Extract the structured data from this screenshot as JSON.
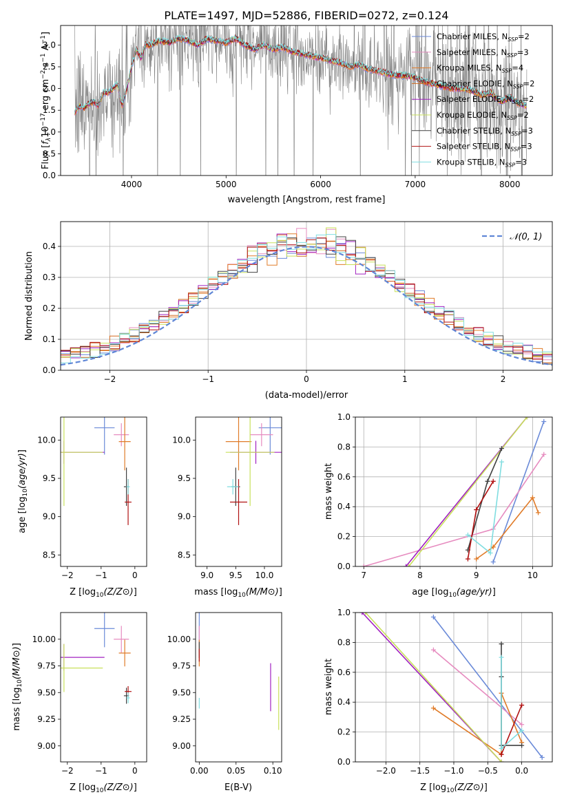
{
  "chart_data": [
    {
      "id": "spectrum",
      "type": "line",
      "title": "PLATE=1497, MJD=52886, FIBERID=0272, z=0.124",
      "xlabel": "wavelength [Angstrom, rest frame]",
      "ylabel_parts": [
        "Flux [",
        "f",
        "λ",
        "10",
        "−17",
        " erg cm",
        "−2",
        " s",
        "−1",
        " A",
        "−1",
        "]"
      ],
      "xlim": [
        3250,
        8450
      ],
      "ylim": [
        0,
        3.45
      ],
      "xticks": [
        4000,
        5000,
        6000,
        7000,
        8000
      ],
      "yticks": [
        0.0,
        0.5,
        1.0,
        1.5,
        2.0,
        2.5,
        3.0
      ],
      "data_color": "#808080",
      "model_x": [
        3400,
        3450,
        3500,
        3550,
        3600,
        3650,
        3700,
        3750,
        3800,
        3850,
        3900,
        3950,
        4000,
        4050,
        4100,
        4150,
        4200,
        4300,
        4400,
        4500,
        4600,
        4700,
        4800,
        4900,
        5000,
        5100,
        5200,
        5300,
        5400,
        5500,
        5600,
        5700,
        5800,
        5900,
        6000,
        6100,
        6200,
        6300,
        6400,
        6500,
        6600,
        6700,
        6800,
        6900,
        7000,
        7100,
        7200,
        7300,
        7400,
        7500,
        7600,
        7700,
        7800,
        7900,
        8000,
        8100,
        8180
      ],
      "model_y": [
        1.45,
        1.6,
        1.55,
        1.65,
        1.7,
        1.6,
        1.9,
        1.9,
        2.0,
        2.1,
        1.6,
        2.0,
        2.5,
        2.9,
        2.7,
        3.0,
        3.0,
        3.1,
        3.05,
        3.15,
        3.1,
        3.0,
        3.15,
        3.1,
        3.05,
        3.15,
        3.0,
        2.9,
        3.0,
        2.9,
        2.95,
        2.85,
        2.8,
        2.75,
        2.7,
        2.65,
        2.6,
        2.5,
        2.55,
        2.45,
        2.4,
        2.35,
        2.3,
        2.3,
        2.25,
        2.15,
        2.1,
        2.05,
        2.0,
        2.0,
        1.95,
        1.85,
        1.9,
        1.7,
        1.8,
        1.65,
        1.6
      ],
      "series": [
        {
          "name": "Chabrier MILES, N",
          "sub": "SSP",
          "n": "2",
          "color": "#6a8ad8"
        },
        {
          "name": "Salpeter MILES, N",
          "sub": "SSP",
          "n": "3",
          "color": "#e68bbf"
        },
        {
          "name": "Kroupa MILES, N",
          "sub": "SSP",
          "n": "4",
          "color": "#e07b28"
        },
        {
          "name": "Chabrier ELODIE, N",
          "sub": "SSP",
          "n": "2",
          "color": "#d2691e"
        },
        {
          "name": "Salpeter ELODIE, N",
          "sub": "SSP",
          "n": "2",
          "color": "#a020c0"
        },
        {
          "name": "Kroupa ELODIE, N",
          "sub": "SSP",
          "n": "2",
          "color": "#c8e05a"
        },
        {
          "name": "Chabrier STELIB, N",
          "sub": "SSP",
          "n": "3",
          "color": "#404040"
        },
        {
          "name": "Salpeter STELIB, N",
          "sub": "SSP",
          "n": "3",
          "color": "#b01010"
        },
        {
          "name": "Kroupa STELIB, N",
          "sub": "SSP",
          "n": "3",
          "color": "#7fdde0"
        }
      ]
    },
    {
      "id": "residuals",
      "type": "histogram",
      "xlabel": "(data-model)/error",
      "ylabel": "Normed distribution",
      "xlim": [
        -2.5,
        2.5
      ],
      "ylim": [
        0,
        0.48
      ],
      "xticks": [
        -2,
        -1,
        0,
        1,
        2
      ],
      "yticks": [
        0.0,
        0.1,
        0.2,
        0.3,
        0.4
      ],
      "grid": true,
      "legend_label": "𝒩(0, 1)",
      "legend_color": "#5f86d6",
      "bin_width": 0.1,
      "bin_start": -2.5,
      "reference_curve": {
        "mean": 0,
        "sigma": 1
      }
    },
    {
      "id": "age-vs-Z",
      "type": "errorbar",
      "xlabel": "Z [log10(Z/Z⊙)]",
      "ylabel": "age  [log10(age/yr)]",
      "xlim": [
        -2.2,
        0.35
      ],
      "ylim": [
        8.35,
        10.3
      ],
      "xticks": [
        -2,
        -1,
        0
      ],
      "yticks": [
        8.5,
        9.0,
        9.5,
        10.0
      ],
      "points": [
        {
          "x": -0.9,
          "y": 10.16,
          "xerr": 0.6,
          "yerr": 0.7,
          "color": "#6a8ad8"
        },
        {
          "x": -0.4,
          "y": 10.07,
          "xerr": 0.45,
          "yerr": 0.3,
          "color": "#e68bbf"
        },
        {
          "x": -0.3,
          "y": 9.98,
          "xerr": 0.35,
          "yerr": 0.75,
          "color": "#e07b28"
        },
        {
          "x": -2.1,
          "y": 9.84,
          "xerr": 2.4,
          "yerr": 0.3,
          "color": "#a020c0"
        },
        {
          "x": -2.1,
          "y": 9.84,
          "xerr": 2.3,
          "yerr": 1.4,
          "color": "#c8e05a"
        },
        {
          "x": -0.25,
          "y": 9.39,
          "xerr": 0.15,
          "yerr": 0.5,
          "color": "#404040"
        },
        {
          "x": -0.2,
          "y": 9.19,
          "xerr": 0.2,
          "yerr": 0.6,
          "color": "#b01010"
        },
        {
          "x": -0.2,
          "y": 9.39,
          "xerr": 0.1,
          "yerr": 0.2,
          "color": "#7fdde0"
        }
      ]
    },
    {
      "id": "age-vs-mass",
      "type": "errorbar",
      "xlabel": "mass [log10(M/M⊙)]",
      "xlim": [
        8.8,
        10.3
      ],
      "ylim": [
        8.35,
        10.3
      ],
      "xticks": [
        9.0,
        9.5,
        10.0
      ],
      "yticks": [
        8.5,
        9.0,
        9.5,
        10.0
      ],
      "points": [
        {
          "x": 10.1,
          "y": 10.16,
          "xerr": 0.4,
          "yerr": 0.7,
          "color": "#6a8ad8"
        },
        {
          "x": 9.95,
          "y": 10.07,
          "xerr": 0.4,
          "yerr": 0.3,
          "color": "#e68bbf"
        },
        {
          "x": 9.55,
          "y": 9.98,
          "xerr": 0.45,
          "yerr": 0.75,
          "color": "#e07b28"
        },
        {
          "x": 9.85,
          "y": 9.84,
          "xerr": 0.9,
          "yerr": 0.3,
          "color": "#a020c0"
        },
        {
          "x": 9.75,
          "y": 9.84,
          "xerr": 0.85,
          "yerr": 1.4,
          "color": "#c8e05a"
        },
        {
          "x": 9.5,
          "y": 9.39,
          "xerr": 0.15,
          "yerr": 0.5,
          "color": "#404040"
        },
        {
          "x": 9.55,
          "y": 9.19,
          "xerr": 0.3,
          "yerr": 0.6,
          "color": "#b01010"
        },
        {
          "x": 9.45,
          "y": 9.39,
          "xerr": 0.2,
          "yerr": 0.2,
          "color": "#7fdde0"
        }
      ]
    },
    {
      "id": "weight-vs-age",
      "type": "line",
      "xlabel": "age  [log10(age/yr)]",
      "ylabel": "mass weight",
      "xlim": [
        6.85,
        10.35
      ],
      "ylim": [
        0,
        1.0
      ],
      "xticks": [
        7,
        8,
        9,
        10
      ],
      "yticks": [
        0.0,
        0.2,
        0.4,
        0.6,
        0.8,
        1.0
      ],
      "grid": true,
      "lines": [
        {
          "color": "#6a8ad8",
          "x": [
            9.3,
            10.2
          ],
          "y": [
            0.03,
            0.97
          ]
        },
        {
          "color": "#e68bbf",
          "x": [
            7.0,
            9.3,
            10.2
          ],
          "y": [
            0.0,
            0.25,
            0.75
          ]
        },
        {
          "color": "#e07b28",
          "x": [
            9.0,
            9.3,
            10.0,
            10.1
          ],
          "y": [
            0.05,
            0.13,
            0.46,
            0.36
          ]
        },
        {
          "color": "#a020c0",
          "x": [
            7.75,
            9.9
          ],
          "y": [
            0.0,
            1.0
          ]
        },
        {
          "color": "#c8e05a",
          "x": [
            7.8,
            9.9
          ],
          "y": [
            0.0,
            1.0
          ]
        },
        {
          "color": "#404040",
          "x": [
            8.85,
            9.2,
            9.45
          ],
          "y": [
            0.11,
            0.57,
            0.79
          ]
        },
        {
          "color": "#b01010",
          "x": [
            8.85,
            9.0,
            9.3
          ],
          "y": [
            0.05,
            0.38,
            0.57
          ]
        },
        {
          "color": "#7fdde0",
          "x": [
            8.85,
            9.25,
            9.45
          ],
          "y": [
            0.21,
            0.09,
            0.7
          ]
        }
      ]
    },
    {
      "id": "mass-vs-Z",
      "type": "errorbar",
      "xlabel": "Z [log10(Z/Z⊙)]",
      "ylabel": "mass [log10(M/M⊙)]",
      "xlim": [
        -2.2,
        0.35
      ],
      "ylim": [
        8.85,
        10.25
      ],
      "xticks": [
        -2,
        -1,
        0
      ],
      "yticks": [
        9.0,
        9.25,
        9.5,
        9.75,
        10.0
      ],
      "points": [
        {
          "x": -0.9,
          "y": 10.1,
          "xerr": 0.6,
          "yerr": 0.35,
          "color": "#6a8ad8"
        },
        {
          "x": -0.4,
          "y": 10.0,
          "xerr": 0.45,
          "yerr": 0.25,
          "color": "#e68bbf"
        },
        {
          "x": -0.3,
          "y": 9.87,
          "xerr": 0.35,
          "yerr": 0.25,
          "color": "#e07b28"
        },
        {
          "x": -2.1,
          "y": 9.83,
          "xerr": 2.4,
          "yerr": 0.25,
          "color": "#a020c0"
        },
        {
          "x": -2.1,
          "y": 9.73,
          "xerr": 2.3,
          "yerr": 0.45,
          "color": "#c8e05a"
        },
        {
          "x": -0.25,
          "y": 9.47,
          "xerr": 0.15,
          "yerr": 0.15,
          "color": "#404040"
        },
        {
          "x": -0.2,
          "y": 9.51,
          "xerr": 0.2,
          "yerr": 0.1,
          "color": "#b01010"
        },
        {
          "x": -0.2,
          "y": 9.45,
          "xerr": 0.1,
          "yerr": 0.1,
          "color": "#7fdde0"
        }
      ]
    },
    {
      "id": "mass-vs-EBV",
      "type": "errorbar",
      "xlabel": "E(B-V)",
      "xlim": [
        -0.005,
        0.112
      ],
      "ylim": [
        8.85,
        10.25
      ],
      "xticks": [
        0.0,
        0.05,
        0.1
      ],
      "xtick_labels": [
        "0.00",
        "0.05",
        "0.10"
      ],
      "yticks": [
        9.0,
        9.25,
        9.5,
        9.75,
        10.0
      ],
      "points": [
        {
          "x": 0.0,
          "y": 10.1,
          "yerr": 0.35,
          "color": "#6a8ad8"
        },
        {
          "x": 0.0,
          "y": 10.0,
          "yerr": 0.25,
          "color": "#e68bbf"
        },
        {
          "x": 0.0,
          "y": 9.87,
          "yerr": 0.25,
          "color": "#e07b28"
        },
        {
          "x": 0.097,
          "y": 9.55,
          "yerr": 0.45,
          "color": "#a020c0"
        },
        {
          "x": 0.108,
          "y": 9.4,
          "yerr": 0.5,
          "color": "#c8e05a"
        },
        {
          "x": 0.0,
          "y": 9.9,
          "yerr": 0.15,
          "color": "#404040"
        },
        {
          "x": 0.0,
          "y": 9.85,
          "yerr": 0.12,
          "color": "#b01010"
        },
        {
          "x": 0.0,
          "y": 9.4,
          "yerr": 0.1,
          "color": "#7fdde0"
        }
      ]
    },
    {
      "id": "weight-vs-Z",
      "type": "line",
      "xlabel": "Z [log10(Z/Z⊙)]",
      "ylabel": "mass weight",
      "xlim": [
        -2.45,
        0.45
      ],
      "ylim": [
        0,
        1.0
      ],
      "xticks": [
        -2.0,
        -1.5,
        -1.0,
        -0.5,
        0.0
      ],
      "yticks": [
        0.0,
        0.2,
        0.4,
        0.6,
        0.8,
        1.0
      ],
      "grid": true,
      "lines": [
        {
          "color": "#6a8ad8",
          "x": [
            -1.3,
            0.3
          ],
          "y": [
            0.97,
            0.03
          ]
        },
        {
          "color": "#e68bbf",
          "x": [
            -1.3,
            0.0
          ],
          "y": [
            0.75,
            0.25
          ]
        },
        {
          "color": "#e07b28",
          "x": [
            -1.3,
            -0.3,
            -0.3,
            0.0
          ],
          "y": [
            0.36,
            0.05,
            0.46,
            0.13
          ]
        },
        {
          "color": "#a020c0",
          "x": [
            -2.35,
            -0.3
          ],
          "y": [
            1.0,
            0.0
          ]
        },
        {
          "color": "#c8e05a",
          "x": [
            -2.3,
            -0.3
          ],
          "y": [
            1.0,
            0.0
          ]
        },
        {
          "color": "#404040",
          "x": [
            -0.3,
            -0.3,
            -0.3,
            0.0
          ],
          "y": [
            0.79,
            0.57,
            0.11,
            0.11
          ]
        },
        {
          "color": "#b01010",
          "x": [
            -0.3,
            0.0,
            -0.3
          ],
          "y": [
            0.05,
            0.38,
            0.05
          ]
        },
        {
          "color": "#7fdde0",
          "x": [
            -0.3,
            -0.3,
            0.0
          ],
          "y": [
            0.7,
            0.09,
            0.21
          ]
        }
      ]
    }
  ]
}
